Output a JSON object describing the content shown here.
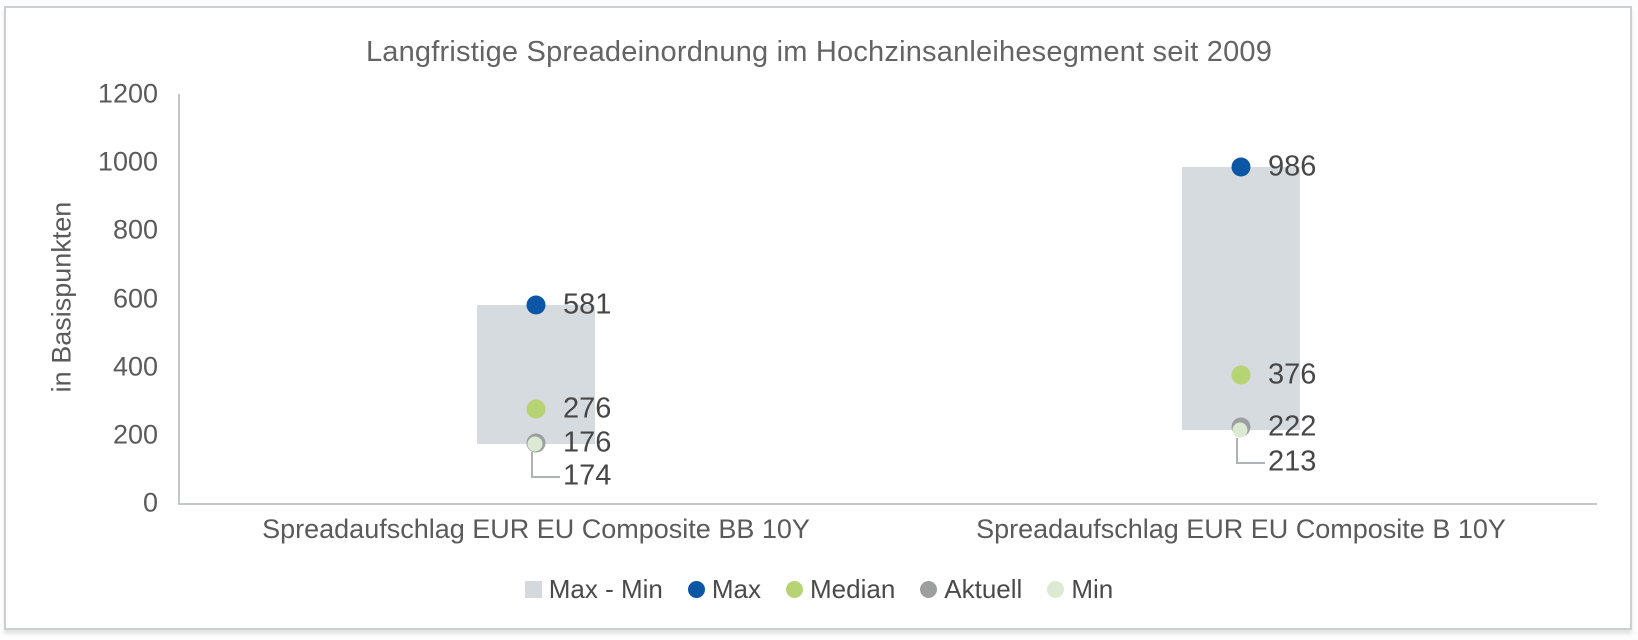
{
  "chart_data": {
    "type": "bar",
    "subtype": "floating-range-with-point-markers",
    "title": "Langfristige Spreadeinordnung im Hochzinsanleihesegment seit 2009",
    "ylabel": "in Basispunkten",
    "ylim": [
      0,
      1200
    ],
    "yticks": [
      0,
      200,
      400,
      600,
      800,
      1000,
      1200
    ],
    "grid": false,
    "legend_position": "bottom",
    "categories": [
      "Spreadaufschlag EUR EU Composite BB 10Y",
      "Spreadaufschlag EUR EU Composite B 10Y"
    ],
    "range_series": {
      "name": "Max - Min",
      "color": "#d6dbdf",
      "low_from": "Min",
      "high_from": "Max"
    },
    "marker_series": [
      {
        "name": "Max",
        "values": [
          581,
          986
        ],
        "color": "#0b57a5",
        "callout": false
      },
      {
        "name": "Median",
        "values": [
          276,
          376
        ],
        "color": "#b7d474",
        "callout": false
      },
      {
        "name": "Aktuell",
        "values": [
          176,
          222
        ],
        "color": "#9b9fa0",
        "callout": false
      },
      {
        "name": "Min",
        "values": [
          174,
          213
        ],
        "color": "#dcead3",
        "callout": true
      }
    ],
    "legend": [
      {
        "label": "Max - Min",
        "swatch": "square",
        "color": "#d3d9dd"
      },
      {
        "label": "Max",
        "swatch": "circle",
        "color": "#0b57a5"
      },
      {
        "label": "Median",
        "swatch": "circle",
        "color": "#b7d474"
      },
      {
        "label": "Aktuell",
        "swatch": "circle",
        "color": "#9b9fa0"
      },
      {
        "label": "Min",
        "swatch": "circle",
        "color": "#dcead3"
      }
    ]
  }
}
